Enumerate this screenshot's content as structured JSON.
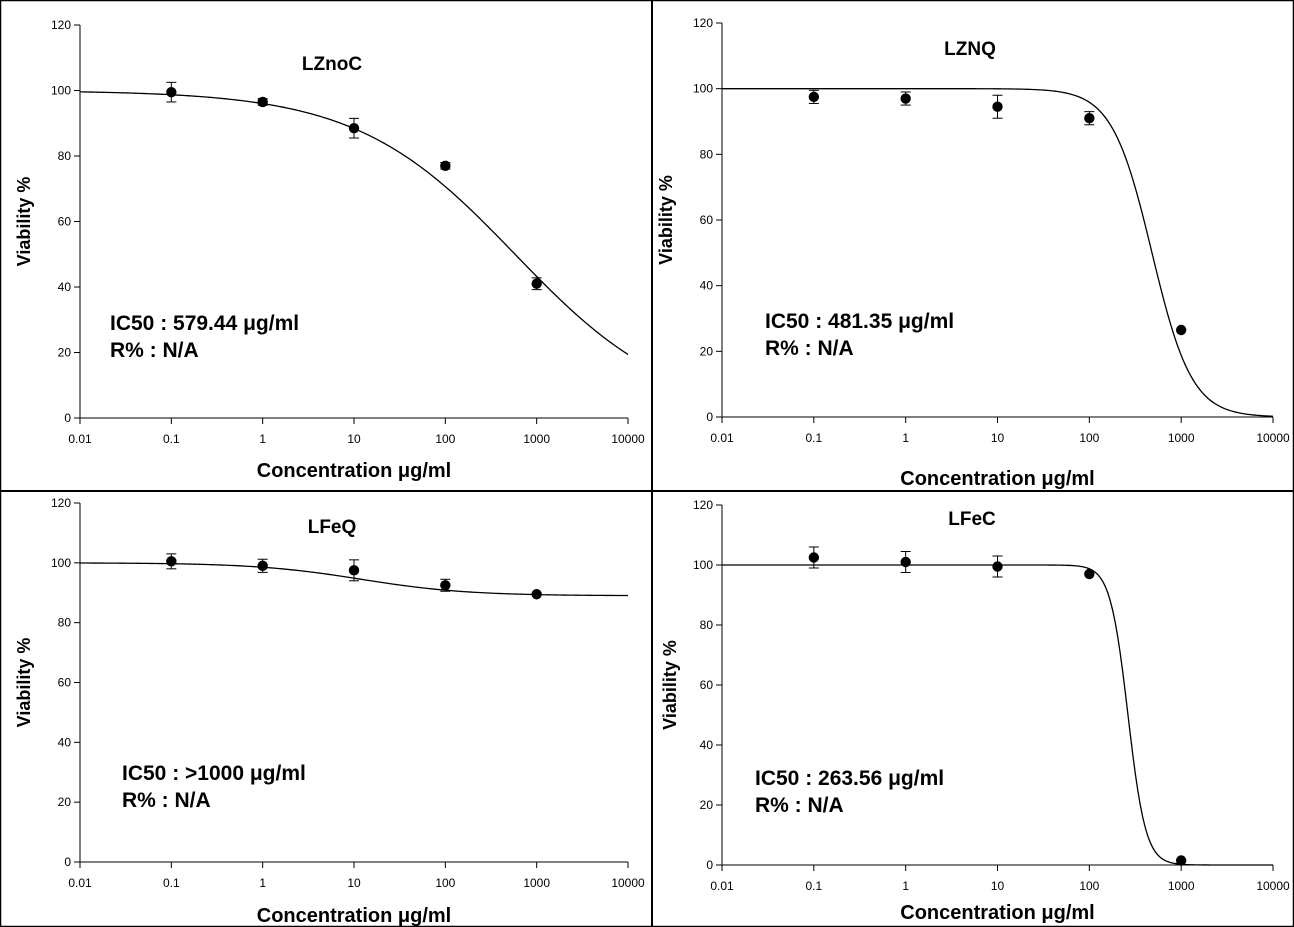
{
  "chart_data": [
    {
      "type": "scatter",
      "title": "LZnoC",
      "xlabel": "Concentration μg/ml",
      "ylabel": "Viability %",
      "x_scale": "log",
      "xlim": [
        0.01,
        10000
      ],
      "ylim": [
        0,
        120
      ],
      "x_ticks": [
        "0.01",
        "0.1",
        "1",
        "10",
        "100",
        "1000",
        "10000"
      ],
      "y_ticks": [
        "0",
        "20",
        "40",
        "60",
        "80",
        "100",
        "120"
      ],
      "points": [
        {
          "x": 0.1,
          "y": 99.5,
          "err": 3
        },
        {
          "x": 1,
          "y": 96.5,
          "err": 1
        },
        {
          "x": 10,
          "y": 88.5,
          "err": 3
        },
        {
          "x": 100,
          "y": 77,
          "err": 1
        },
        {
          "x": 1000,
          "y": 41,
          "err": 1.8
        }
      ],
      "fit": {
        "top": 100,
        "bottom": 0,
        "ic50": 579.44,
        "hill": 0.5
      },
      "annotation": [
        "IC50 : 579.44 μg/ml",
        "R% : N/A"
      ]
    },
    {
      "type": "scatter",
      "title": "LZNQ",
      "xlabel": "Concentration μg/ml",
      "ylabel": "Viability %",
      "x_scale": "log",
      "xlim": [
        0.01,
        10000
      ],
      "ylim": [
        0,
        120
      ],
      "x_ticks": [
        "0.01",
        "0.1",
        "1",
        "10",
        "100",
        "1000",
        "10000"
      ],
      "y_ticks": [
        "0",
        "20",
        "40",
        "60",
        "80",
        "100",
        "120"
      ],
      "points": [
        {
          "x": 0.1,
          "y": 97.5,
          "err": 2
        },
        {
          "x": 1,
          "y": 97,
          "err": 2
        },
        {
          "x": 10,
          "y": 94.5,
          "err": 3.5
        },
        {
          "x": 100,
          "y": 91,
          "err": 2
        },
        {
          "x": 1000,
          "y": 26.5,
          "err": 0
        }
      ],
      "fit": {
        "top": 100,
        "bottom": 0,
        "ic50": 481.35,
        "hill": 2
      },
      "annotation": [
        "IC50 : 481.35 μg/ml",
        "R% : N/A"
      ]
    },
    {
      "type": "scatter",
      "title": "LFeQ",
      "xlabel": "Concentration μg/ml",
      "ylabel": "Viability %",
      "x_scale": "log",
      "xlim": [
        0.01,
        10000
      ],
      "ylim": [
        0,
        120
      ],
      "x_ticks": [
        "0.01",
        "0.1",
        "1",
        "10",
        "100",
        "1000",
        "10000"
      ],
      "y_ticks": [
        "0",
        "20",
        "40",
        "60",
        "80",
        "100",
        "120"
      ],
      "points": [
        {
          "x": 0.1,
          "y": 100.5,
          "err": 2.5
        },
        {
          "x": 1,
          "y": 99,
          "err": 2.2
        },
        {
          "x": 10,
          "y": 97.5,
          "err": 3.5
        },
        {
          "x": 100,
          "y": 92.5,
          "err": 2
        },
        {
          "x": 1000,
          "y": 89.5,
          "err": 0
        }
      ],
      "fit": {
        "top": 100,
        "bottom": 89,
        "ic50": 12,
        "hill": 0.75
      },
      "annotation": [
        "IC50 : >1000 μg/ml",
        "R% : N/A"
      ]
    },
    {
      "type": "scatter",
      "title": "LFeC",
      "xlabel": "Concentration μg/ml",
      "ylabel": "Viability %",
      "x_scale": "log",
      "xlim": [
        0.01,
        10000
      ],
      "ylim": [
        0,
        120
      ],
      "x_ticks": [
        "0.01",
        "0.1",
        "1",
        "10",
        "100",
        "1000",
        "10000"
      ],
      "y_ticks": [
        "0",
        "20",
        "40",
        "60",
        "80",
        "100",
        "120"
      ],
      "points": [
        {
          "x": 0.1,
          "y": 102.5,
          "err": 3.5
        },
        {
          "x": 1,
          "y": 101,
          "err": 3.5
        },
        {
          "x": 10,
          "y": 99.5,
          "err": 3.5
        },
        {
          "x": 100,
          "y": 97,
          "err": 0
        },
        {
          "x": 1000,
          "y": 1.5,
          "err": 0
        }
      ],
      "fit": {
        "top": 100,
        "bottom": 0,
        "ic50": 263.56,
        "hill": 4.5
      },
      "annotation": [
        "IC50 : 263.56 μg/ml",
        "R% : N/A"
      ]
    }
  ]
}
